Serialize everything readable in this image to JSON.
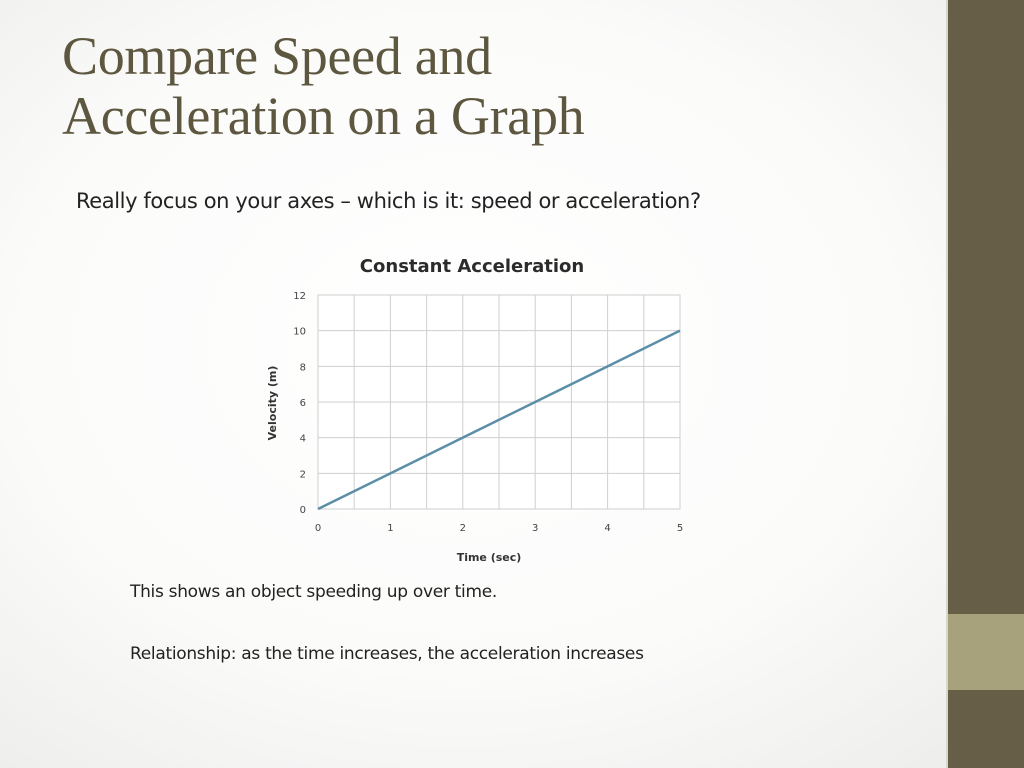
{
  "slide": {
    "title_line1": "Compare Speed and",
    "title_line2": "Acceleration on a Graph",
    "subtitle": "Really focus on your axes – which is it: speed or acceleration?",
    "note1": "This shows an object speeding up over time.",
    "note2": "Relationship: as the time increases, the acceleration increases"
  },
  "theme": {
    "sidebar_color": "#675e47",
    "sidebar_block_color": "#a7a17c",
    "title_color": "#5e5740",
    "line_color": "#5b8fa8"
  },
  "chart_data": {
    "type": "line",
    "title": "Constant Acceleration",
    "xlabel": "Time (sec)",
    "ylabel": "Velocity (m)",
    "xlim": [
      0,
      5
    ],
    "ylim": [
      0,
      12
    ],
    "xticks": [
      0,
      1,
      2,
      3,
      4,
      5
    ],
    "yticks": [
      0,
      2,
      4,
      6,
      8,
      10,
      12
    ],
    "grid": true,
    "legend": "none",
    "series": [
      {
        "x": [
          0,
          1,
          2,
          3,
          4,
          5
        ],
        "y": [
          0,
          2,
          4,
          6,
          8,
          10
        ]
      }
    ]
  }
}
